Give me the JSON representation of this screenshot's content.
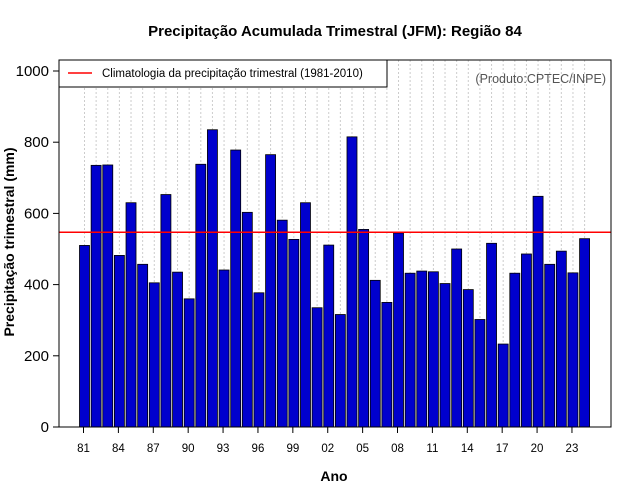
{
  "chart_data": {
    "type": "bar",
    "title": "Precipitação Acumulada Trimestral (JFM): Região 84",
    "xlabel": "Ano",
    "ylabel": "Precipitação trimestral (mm)",
    "ylim": [
      0,
      1000
    ],
    "yticks": [
      0,
      200,
      400,
      600,
      800,
      1000
    ],
    "grid": "vertical dotted",
    "credit": "(Produto:CPTEC/INPE)",
    "colors": {
      "bar": "#0000cd",
      "reference": "#ff0000"
    },
    "categories": [
      "81",
      "82",
      "83",
      "84",
      "85",
      "86",
      "87",
      "88",
      "89",
      "90",
      "91",
      "92",
      "93",
      "94",
      "95",
      "96",
      "97",
      "98",
      "99",
      "00",
      "01",
      "02",
      "03",
      "04",
      "05",
      "06",
      "07",
      "08",
      "09",
      "10",
      "11",
      "12",
      "13",
      "14",
      "15",
      "16",
      "17",
      "18",
      "19",
      "20",
      "21",
      "22",
      "23",
      "24"
    ],
    "values": [
      510,
      735,
      736,
      482,
      630,
      457,
      405,
      653,
      435,
      360,
      738,
      835,
      441,
      778,
      603,
      377,
      765,
      581,
      527,
      630,
      335,
      511,
      316,
      815,
      555,
      412,
      350,
      545,
      432,
      438,
      436,
      403,
      500,
      386,
      302,
      516,
      233,
      432,
      486,
      648,
      457,
      494,
      433,
      529
    ],
    "xtick_labels": [
      "81",
      "84",
      "87",
      "90",
      "93",
      "96",
      "99",
      "02",
      "05",
      "08",
      "11",
      "14",
      "17",
      "20",
      "23"
    ],
    "reference_line": {
      "value": 547,
      "label": "Climatologia da precipitação trimestral (1981-2010)"
    },
    "legend_position": "top-left"
  }
}
